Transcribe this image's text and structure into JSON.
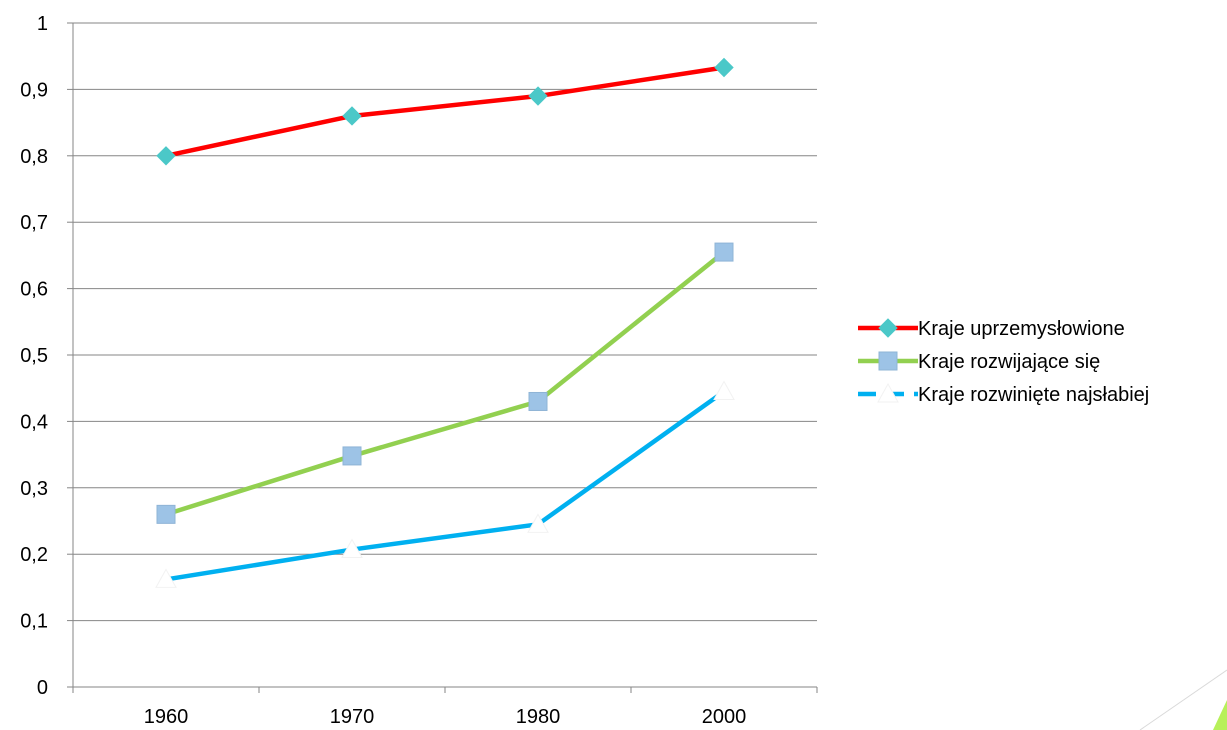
{
  "chart_data": {
    "type": "line",
    "title": "",
    "xlabel": "",
    "ylabel": "",
    "categories": [
      "1960",
      "1970",
      "1980",
      "2000"
    ],
    "ylim": [
      0,
      1
    ],
    "yticks": [
      "0",
      "0,1",
      "0,2",
      "0,3",
      "0,4",
      "0,5",
      "0,6",
      "0,7",
      "0,8",
      "0,9",
      "1"
    ],
    "grid": "horizontal",
    "legend_position": "right",
    "series": [
      {
        "name": "Kraje uprzemysłowione",
        "values": [
          0.8,
          0.86,
          0.89,
          0.933
        ],
        "color": "#ff0000",
        "marker": "diamond",
        "marker_color": "#4bc8c8",
        "dash": "solid"
      },
      {
        "name": "Kraje rozwijające się",
        "values": [
          0.26,
          0.348,
          0.43,
          0.655
        ],
        "color": "#92d050",
        "marker": "square",
        "marker_color": "#9dc3e6",
        "dash": "solid"
      },
      {
        "name": "Kraje rozwinięte najsłabiej",
        "values": [
          0.162,
          0.207,
          0.245,
          0.445
        ],
        "color": "#00b0f0",
        "marker": "triangle",
        "marker_color": "#ffffff",
        "dash": "dashed"
      }
    ]
  }
}
